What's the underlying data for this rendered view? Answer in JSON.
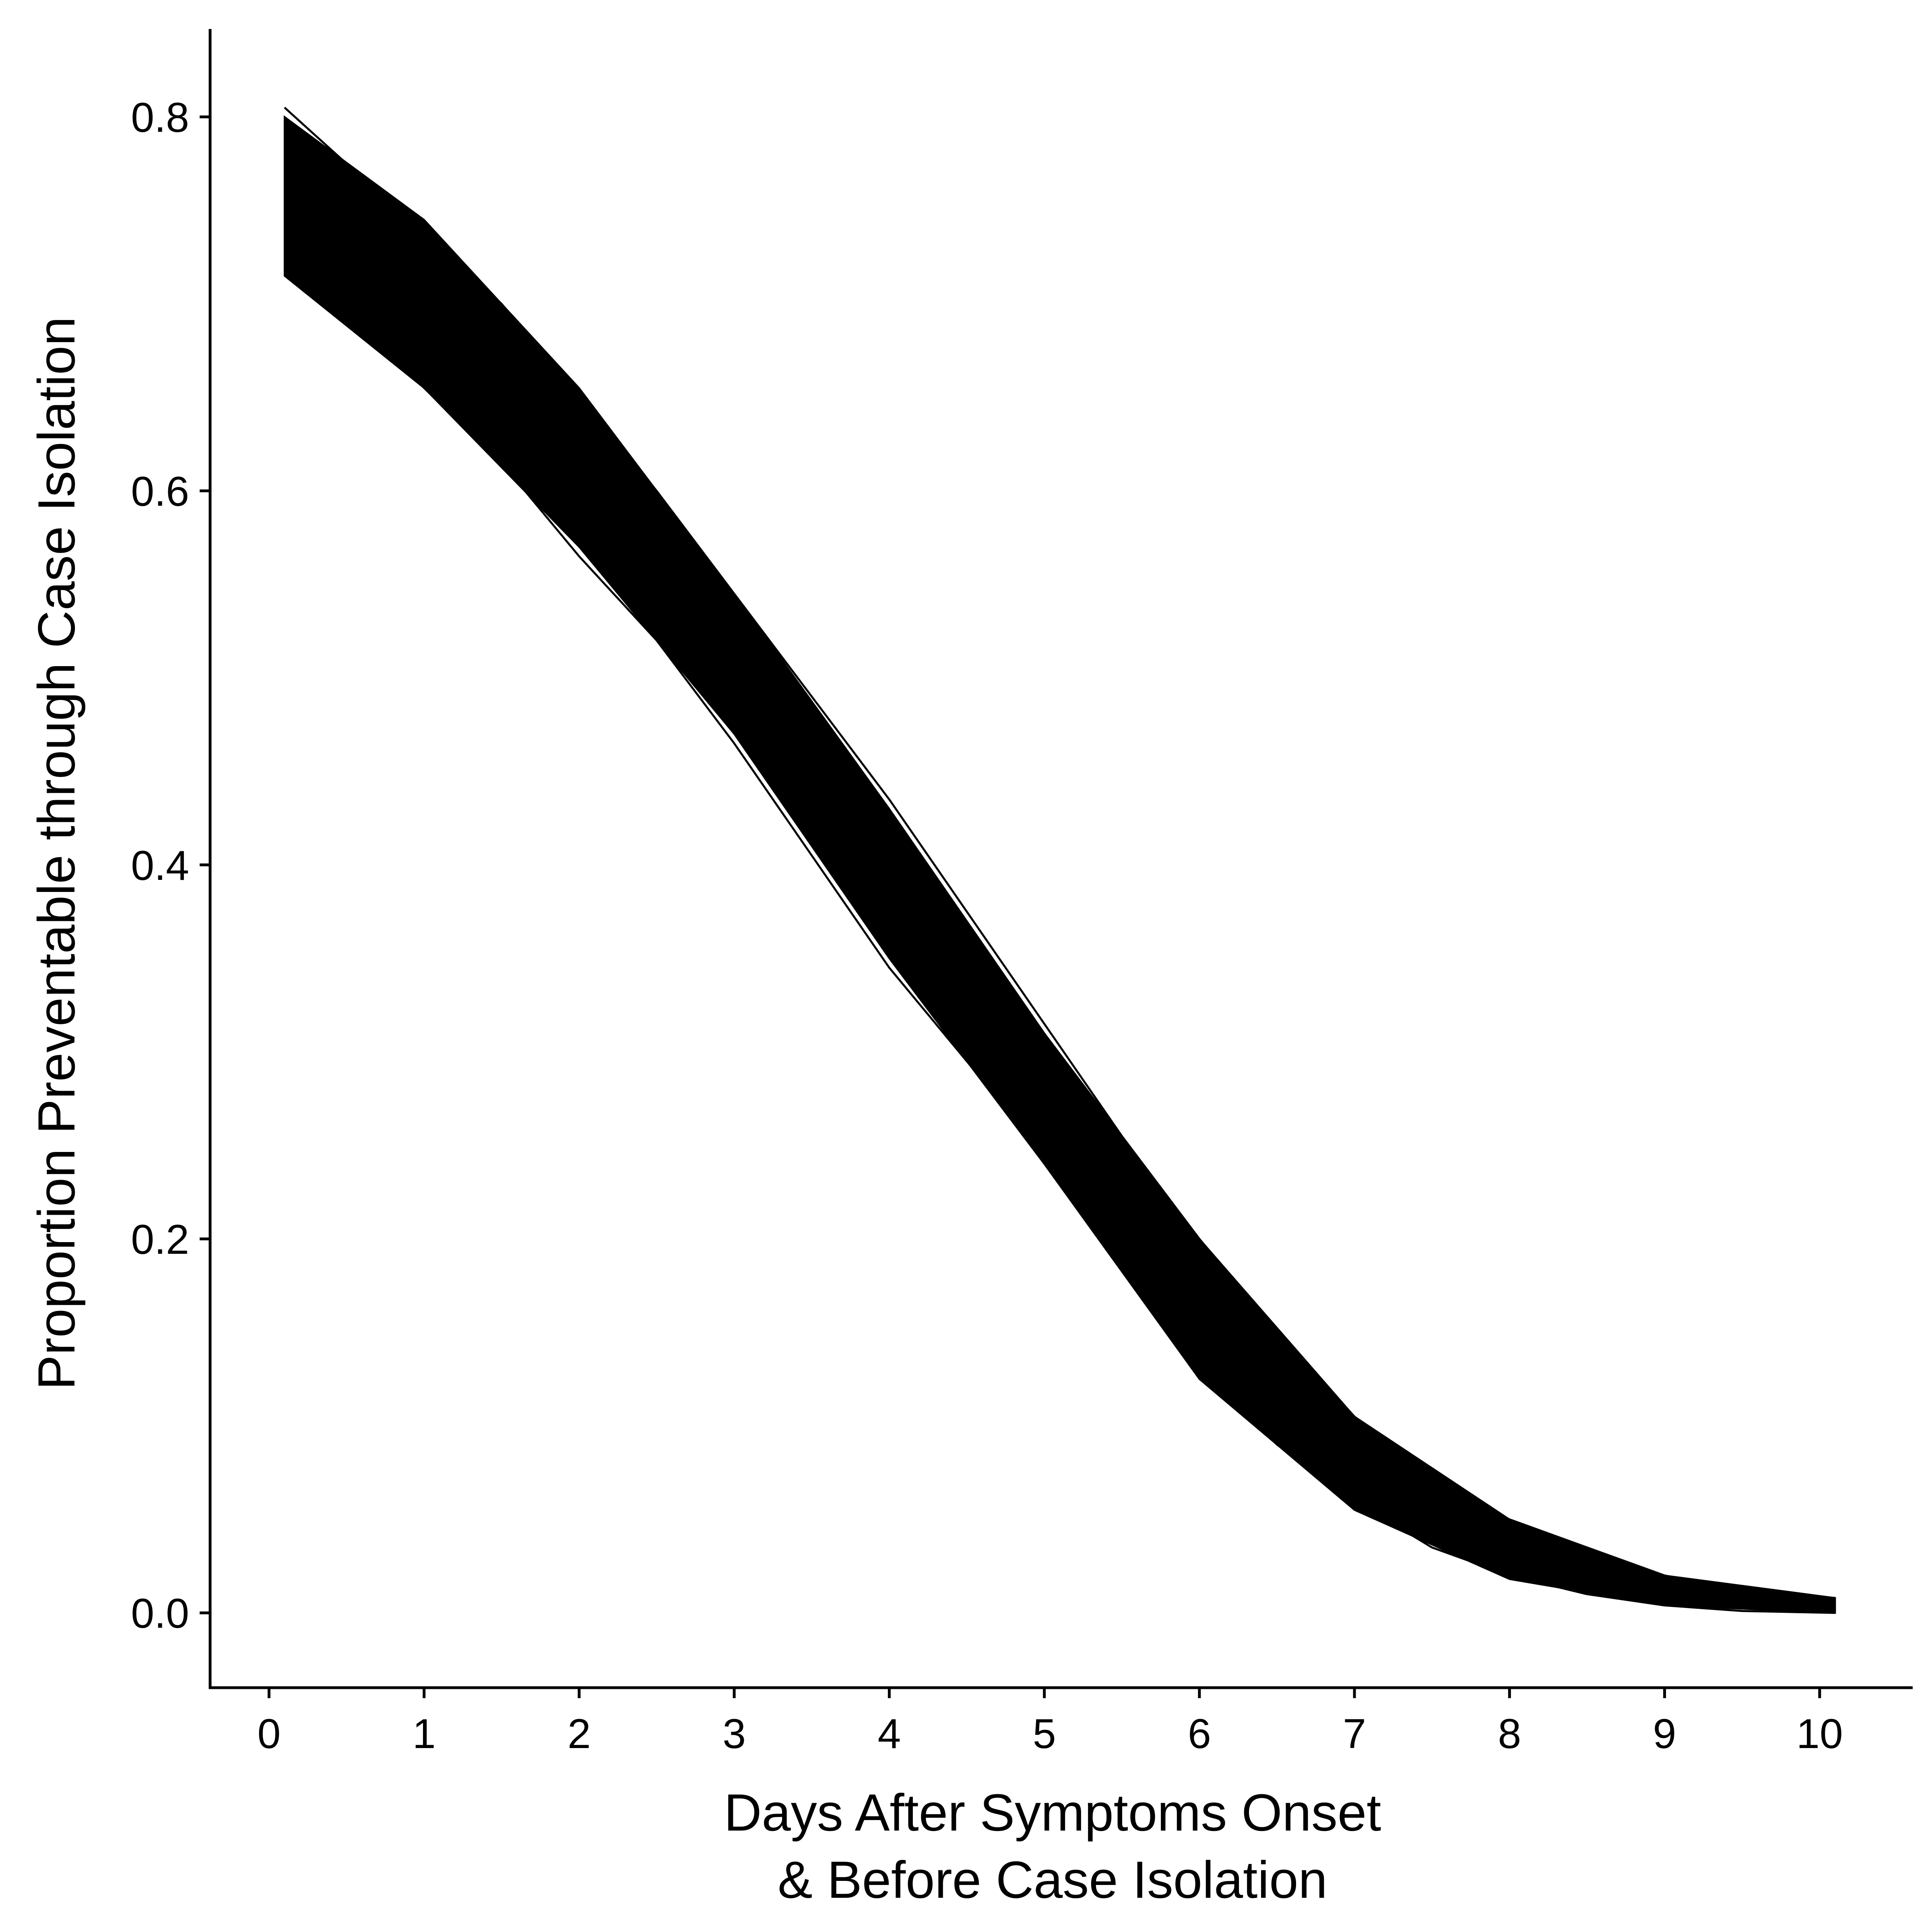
{
  "chart_data": {
    "type": "line",
    "title": "",
    "xlabel_lines": [
      "Days After Symptoms Onset",
      "& Before Case Isolation"
    ],
    "ylabel": "Proportion Preventable through Case Isolation",
    "xlim": [
      -0.38,
      10.6
    ],
    "ylim": [
      -0.04,
      0.847
    ],
    "x_ticks": [
      0,
      1,
      2,
      3,
      4,
      5,
      6,
      7,
      8,
      9,
      10
    ],
    "x_tick_labels": [
      "0",
      "1",
      "2",
      "3",
      "4",
      "5",
      "6",
      "7",
      "8",
      "9",
      "10"
    ],
    "y_ticks": [
      0.0,
      0.2,
      0.4,
      0.6,
      0.8
    ],
    "y_tick_labels": [
      "0.0",
      "0.2",
      "0.4",
      "0.6",
      "0.8"
    ],
    "grid": false,
    "legend": "none",
    "line_color": "#000000",
    "band": {
      "name": "",
      "x": [
        0.1,
        1.0,
        2.0,
        3.0,
        4.0,
        5.0,
        6.0,
        7.0,
        8.0,
        9.0,
        10.1
      ],
      "upper": [
        0.8,
        0.745,
        0.655,
        0.545,
        0.43,
        0.31,
        0.2,
        0.105,
        0.05,
        0.02,
        0.008
      ],
      "lower": [
        0.715,
        0.655,
        0.57,
        0.47,
        0.35,
        0.24,
        0.125,
        0.055,
        0.018,
        0.004,
        0.0
      ]
    },
    "series": [
      {
        "x": [
          0.1,
          0.5,
          1.0,
          1.5,
          2.0,
          2.5,
          3.0,
          3.5,
          4.0,
          4.5,
          5.0,
          5.5,
          6.0,
          6.5,
          7.0,
          7.5,
          8.0,
          8.5,
          9.0,
          9.5,
          10.1
        ],
        "values": [
          0.805,
          0.775,
          0.74,
          0.7,
          0.65,
          0.6,
          0.545,
          0.49,
          0.435,
          0.375,
          0.315,
          0.255,
          0.2,
          0.15,
          0.105,
          0.07,
          0.05,
          0.035,
          0.02,
          0.012,
          0.008
        ]
      },
      {
        "x": [
          0.1,
          0.5,
          1.0,
          1.5,
          2.0,
          2.5,
          3.0,
          3.5,
          4.0,
          4.5,
          5.0,
          5.5,
          6.0,
          6.5,
          7.0,
          7.5,
          8.0,
          8.5,
          9.0,
          9.5,
          10.1
        ],
        "values": [
          0.72,
          0.695,
          0.655,
          0.615,
          0.565,
          0.52,
          0.465,
          0.405,
          0.345,
          0.295,
          0.245,
          0.185,
          0.13,
          0.09,
          0.06,
          0.035,
          0.02,
          0.01,
          0.004,
          0.001,
          0.0
        ]
      },
      {
        "x": [
          0.1,
          0.5,
          1.0,
          1.5,
          2.0,
          2.5,
          3.0,
          3.5,
          4.0,
          4.5,
          5.0,
          5.5,
          6.0,
          6.5,
          7.0,
          7.5,
          8.0,
          8.5,
          9.0,
          9.5,
          10.1
        ],
        "values": [
          0.76,
          0.735,
          0.7,
          0.66,
          0.61,
          0.56,
          0.505,
          0.448,
          0.39,
          0.333,
          0.278,
          0.22,
          0.163,
          0.118,
          0.08,
          0.05,
          0.032,
          0.02,
          0.01,
          0.005,
          0.003
        ]
      },
      {
        "x": [
          0.1,
          0.5,
          1.0,
          1.5,
          2.0,
          2.5,
          3.0,
          3.5,
          4.0,
          4.5,
          5.0,
          5.5,
          6.0,
          6.5,
          7.0,
          7.5,
          8.0,
          8.5,
          9.0,
          9.5,
          10.1
        ],
        "values": [
          0.78,
          0.755,
          0.722,
          0.682,
          0.632,
          0.582,
          0.527,
          0.47,
          0.412,
          0.356,
          0.297,
          0.238,
          0.182,
          0.135,
          0.093,
          0.061,
          0.042,
          0.028,
          0.015,
          0.008,
          0.005
        ]
      },
      {
        "x": [
          0.1,
          0.5,
          1.0,
          1.5,
          2.0,
          2.5,
          3.0,
          3.5,
          4.0,
          4.5,
          5.0,
          5.5,
          6.0,
          6.5,
          7.0,
          7.5,
          8.0,
          8.5,
          9.0,
          9.5,
          10.1
        ],
        "values": [
          0.738,
          0.713,
          0.677,
          0.637,
          0.587,
          0.538,
          0.483,
          0.426,
          0.367,
          0.312,
          0.26,
          0.202,
          0.146,
          0.103,
          0.069,
          0.042,
          0.026,
          0.015,
          0.007,
          0.003,
          0.001
        ]
      }
    ]
  }
}
